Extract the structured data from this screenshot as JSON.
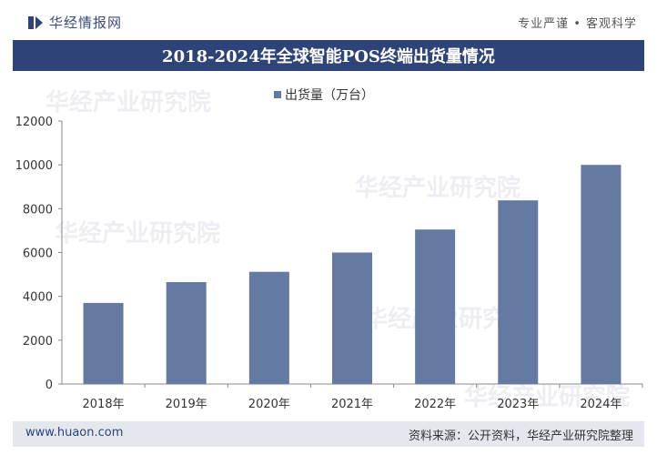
{
  "header": {
    "brand": "华经情报网",
    "slogan": "专业严谨 • 客观科学"
  },
  "title": "2018-2024年全球智能POS终端出货量情况",
  "footer": {
    "site": "www.huaon.com",
    "source": "资料来源：公开资料，华经产业研究院整理"
  },
  "watermark": "华经产业研究院",
  "colors": {
    "bar": "#657aa2",
    "title_bg": "#2e4478",
    "footer_bg": "#e4e7ee"
  },
  "chart_data": {
    "type": "bar",
    "title": "2018-2024年全球智能POS终端出货量情况",
    "categories": [
      "2018年",
      "2019年",
      "2020年",
      "2021年",
      "2022年",
      "2023年",
      "2024年"
    ],
    "series": [
      {
        "name": "出货量（万台）",
        "values": [
          3700,
          4650,
          5120,
          6000,
          7050,
          8380,
          10000
        ]
      }
    ],
    "ylim": [
      0,
      12000
    ],
    "yticks": [
      0,
      2000,
      4000,
      6000,
      8000,
      10000,
      12000
    ],
    "legend": "top-center",
    "grid": false
  }
}
